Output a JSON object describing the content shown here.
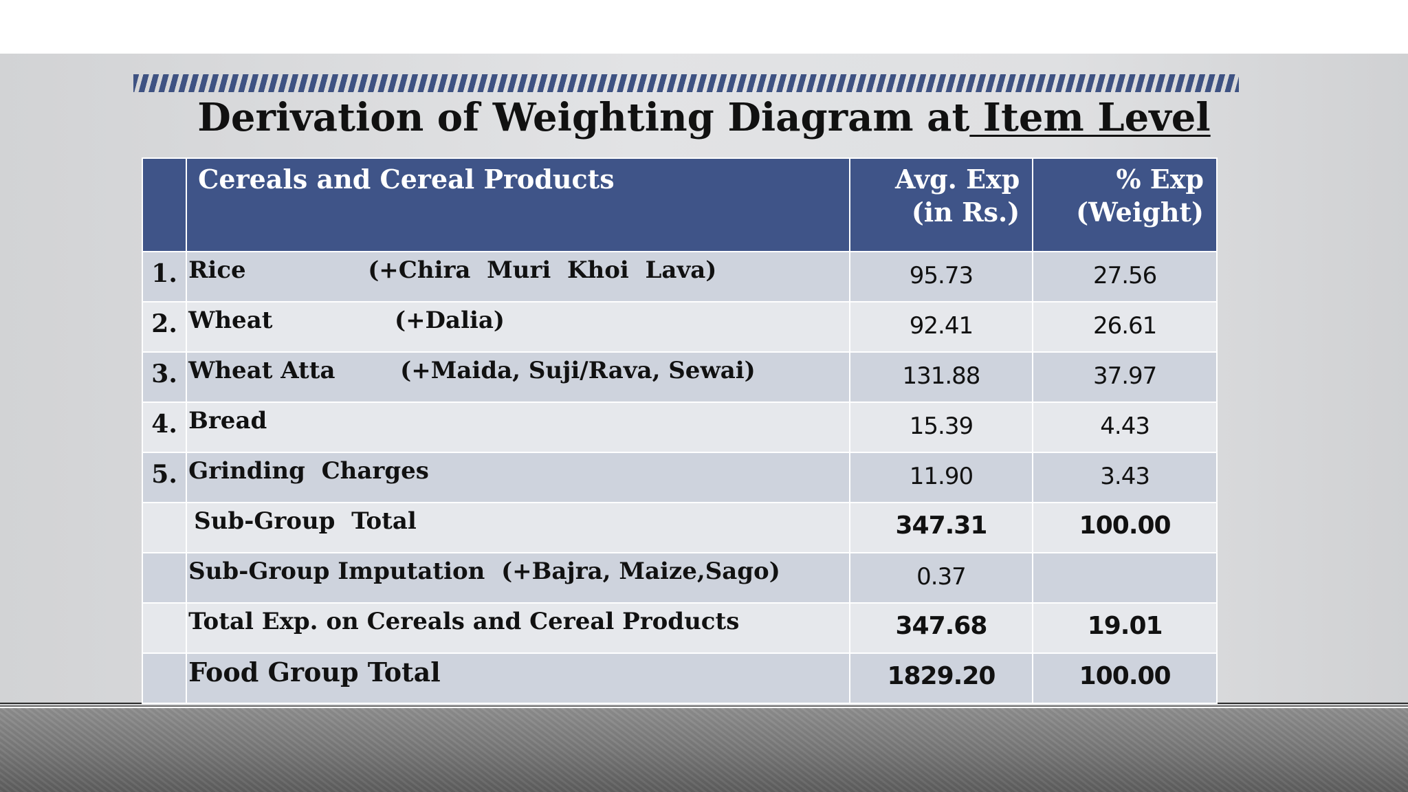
{
  "slide": {
    "title_main": "Derivation of Weighting Diagram at",
    "title_underlined": " Item Level"
  },
  "table": {
    "header": {
      "category": "Cereals and Cereal Products",
      "avg_exp_line1": "Avg. Exp",
      "avg_exp_line2": "(in Rs.)",
      "pct_exp_line1": "% Exp",
      "pct_exp_line2": "(Weight)"
    },
    "rows": [
      {
        "index": "1.",
        "item": "Rice               (+Chira  Muri  Khoi  Lava)",
        "avg": "95.73",
        "pct": "27.56"
      },
      {
        "index": "2.",
        "item": "Wheat               (+Dalia)",
        "avg": "92.41",
        "pct": "26.61"
      },
      {
        "index": "3.",
        "item": "Wheat Atta        (+Maida, Suji/Rava, Sewai)",
        "avg": "131.88",
        "pct": "37.97"
      },
      {
        "index": "4.",
        "item": "Bread",
        "avg": "15.39",
        "pct": "4.43"
      },
      {
        "index": "5.",
        "item": "Grinding  Charges",
        "avg": "11.90",
        "pct": "3.43"
      },
      {
        "index": "",
        "item": "Sub-Group  Total",
        "avg": "347.31",
        "pct": "100.00"
      },
      {
        "index": "",
        "item": "Sub-Group Imputation  (+Bajra, Maize,Sago)",
        "avg": "0.37",
        "pct": ""
      },
      {
        "index": "",
        "item": "Total Exp. on Cereals and Cereal Products",
        "avg": "347.68",
        "pct": "19.01"
      },
      {
        "index": "",
        "item": "Food Group Total",
        "avg": "1829.20",
        "pct": "100.00"
      }
    ]
  },
  "colors": {
    "header_bg": "#3f5488",
    "row_dark": "#ced3dd",
    "row_light": "#e6e8ec",
    "stripe": "#3e5282"
  }
}
